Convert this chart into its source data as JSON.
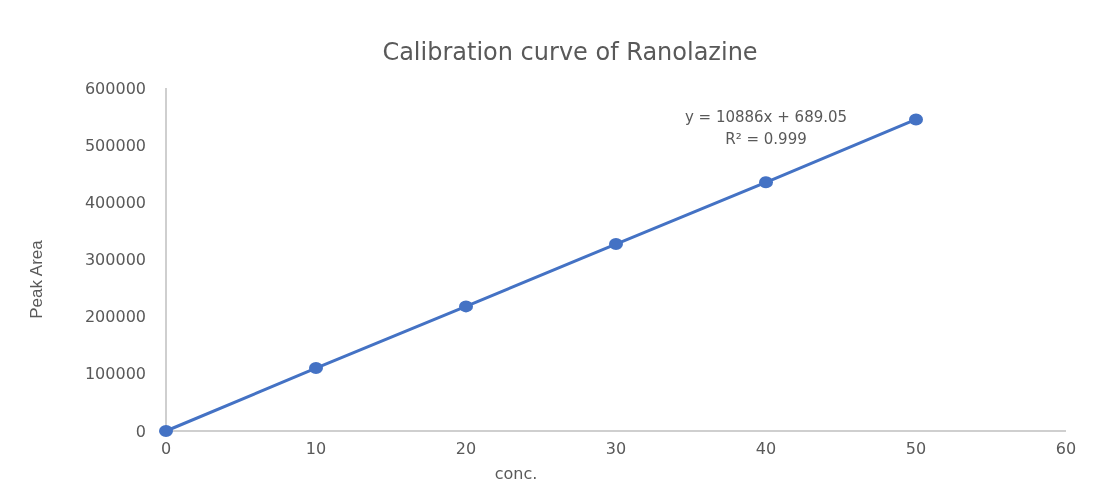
{
  "chart_data": {
    "type": "line",
    "title": "Calibration curve of Ranolazine",
    "xlabel": "conc.",
    "ylabel": "Peak Area",
    "x": [
      0,
      10,
      20,
      30,
      40,
      50
    ],
    "series": [
      {
        "color": "#4472c4",
        "values": [
          0,
          110000,
          218000,
          327000,
          435000,
          545000
        ],
        "marker": "circle",
        "line_style": "solid"
      }
    ],
    "annotations": [
      "y = 10886x + 689.05",
      "R² = 0.999"
    ],
    "xlim": [
      0,
      60
    ],
    "xticks": [
      0,
      10,
      20,
      30,
      40,
      50,
      60
    ],
    "ylim": [
      0,
      600000
    ],
    "yticks": [
      0,
      100000,
      200000,
      300000,
      400000,
      500000,
      600000
    ],
    "grid": false
  }
}
